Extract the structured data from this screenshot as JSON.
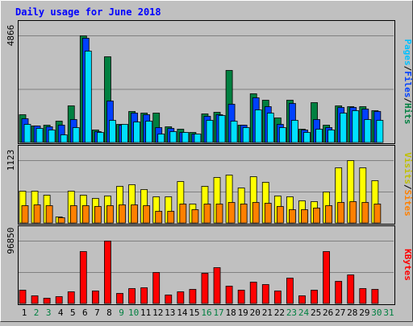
{
  "chart_data": {
    "type": "bar",
    "title": "Daily usage for June 2018",
    "categories": [
      "1",
      "2",
      "3",
      "4",
      "5",
      "6",
      "7",
      "8",
      "9",
      "10",
      "11",
      "12",
      "13",
      "14",
      "15",
      "16",
      "17",
      "18",
      "19",
      "20",
      "21",
      "22",
      "23",
      "24",
      "25",
      "26",
      "27",
      "28",
      "29",
      "30",
      "31"
    ],
    "weekend_days": [
      "2",
      "3",
      "9",
      "10",
      "16",
      "17",
      "23",
      "24",
      "30",
      "31"
    ],
    "top_panel": {
      "max_label": "4866",
      "max": 4866,
      "legend": [
        "Pages",
        "/",
        "Files",
        "/",
        "Hits"
      ],
      "series": [
        {
          "name": "Hits",
          "color": "#008040",
          "values": [
            1290,
            780,
            800,
            990,
            1700,
            4866,
            600,
            3900,
            850,
            1420,
            1350,
            1370,
            720,
            610,
            490,
            1330,
            1380,
            3310,
            820,
            2240,
            1930,
            1120,
            1950,
            620,
            1830,
            820,
            1680,
            1660,
            1660,
            1460,
            0
          ]
        },
        {
          "name": "Files",
          "color": "#0040ff",
          "values": [
            1100,
            760,
            740,
            790,
            1050,
            4770,
            520,
            1920,
            790,
            1350,
            1290,
            700,
            670,
            490,
            410,
            1210,
            1280,
            1770,
            790,
            2060,
            1640,
            850,
            1790,
            570,
            1060,
            700,
            1610,
            1600,
            1550,
            1440,
            0
          ]
        },
        {
          "name": "Pages",
          "color": "#00e0ff",
          "values": [
            840,
            660,
            590,
            380,
            700,
            4180,
            480,
            1020,
            830,
            950,
            1000,
            410,
            520,
            460,
            390,
            1010,
            1260,
            1000,
            690,
            1490,
            1360,
            680,
            1030,
            460,
            610,
            600,
            1360,
            1450,
            1050,
            1040,
            0
          ]
        }
      ]
    },
    "middle_panel": {
      "max_label": "1123",
      "max": 1123,
      "legend": [
        "Visits",
        "/",
        "Sites"
      ],
      "series": [
        {
          "name": "Visits",
          "color": "#ffff00",
          "values": [
            570,
            580,
            500,
            110,
            570,
            500,
            440,
            490,
            660,
            690,
            600,
            470,
            470,
            750,
            340,
            660,
            820,
            870,
            640,
            830,
            740,
            490,
            470,
            400,
            390,
            560,
            1000,
            1123,
            1000,
            760,
            0
          ]
        },
        {
          "name": "Sites",
          "color": "#ff8000",
          "values": [
            320,
            330,
            320,
            100,
            310,
            320,
            300,
            310,
            330,
            330,
            320,
            210,
            220,
            350,
            240,
            340,
            350,
            380,
            350,
            370,
            360,
            300,
            240,
            250,
            270,
            320,
            380,
            390,
            380,
            350,
            0
          ]
        }
      ]
    },
    "bottom_panel": {
      "max_label": "96850",
      "max": 96850,
      "legend": [
        "KBytes"
      ],
      "series": [
        {
          "name": "KBytes",
          "color": "#ff0000",
          "values": [
            20600,
            13000,
            9200,
            10700,
            18300,
            81100,
            20200,
            96850,
            16000,
            24100,
            24400,
            48000,
            14200,
            18300,
            21900,
            46900,
            55700,
            27500,
            21700,
            33600,
            30000,
            20200,
            39200,
            12300,
            21100,
            80400,
            35300,
            44300,
            24200,
            22700,
            0
          ]
        }
      ]
    }
  }
}
